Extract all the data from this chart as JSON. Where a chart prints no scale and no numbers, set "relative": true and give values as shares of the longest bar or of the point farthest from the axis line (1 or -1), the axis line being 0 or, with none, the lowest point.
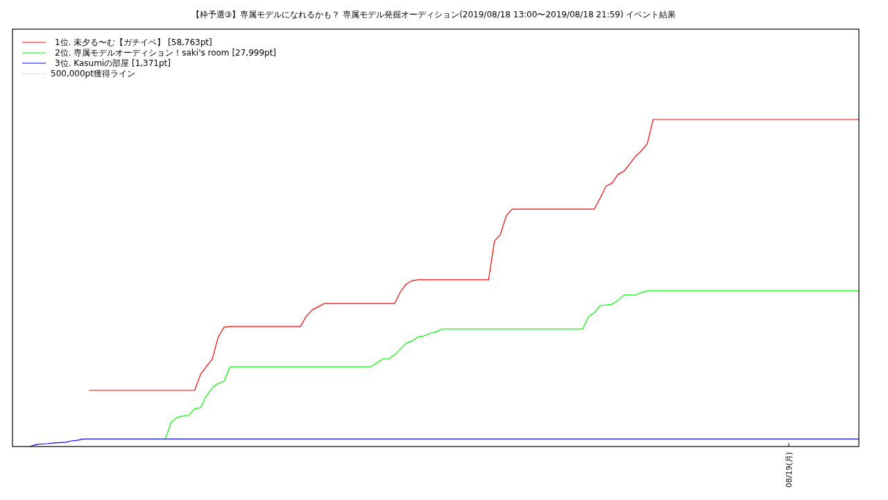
{
  "chart_data": {
    "type": "line",
    "relative": true,
    "title": "【枠予選③】専属モデルになれるかも？ 専属モデル発掘オーディション(2019/08/18 13:00〜2019/08/18 21:59)          イベント結果",
    "categories": [
      null,
      null,
      null,
      null,
      null,
      null,
      null,
      null,
      null,
      null,
      null,
      null,
      null,
      null,
      null,
      null,
      null,
      null,
      null,
      null,
      null,
      null,
      null,
      null,
      null,
      null,
      null,
      null,
      null,
      null,
      null,
      null,
      null,
      null,
      null,
      null,
      null,
      null,
      null,
      null,
      null,
      null,
      null,
      null,
      null,
      null,
      null,
      null,
      null,
      null,
      null,
      null,
      null,
      null,
      null,
      null,
      null,
      null,
      null,
      null,
      null,
      null,
      null,
      null,
      null,
      null,
      null,
      null,
      null,
      null,
      null,
      null,
      null,
      null,
      null,
      null,
      null,
      null,
      null,
      null,
      null,
      null,
      null,
      null,
      null,
      null,
      null,
      null,
      null,
      null,
      null,
      null,
      null,
      null,
      null,
      null,
      null,
      null,
      null,
      null,
      null,
      null,
      null,
      null,
      null,
      null,
      null,
      null,
      null,
      null,
      null,
      null,
      null,
      null,
      null,
      null,
      null,
      null,
      null,
      null,
      null,
      null,
      null,
      null,
      null,
      null,
      null,
      null,
      null,
      null,
      null,
      null,
      null,
      null,
      null,
      null,
      null,
      null,
      null,
      null,
      null,
      null,
      null,
      null,
      null
    ],
    "annotations": [
      "08/19(月)"
    ],
    "legend": "top left",
    "line_style": "solid",
    "marker": "none",
    "series": [
      {
        "name": "1位. 未夕る〜む【ガチイベ】 [58,763pt]",
        "color": "#ff0000",
        "values": [
          null,
          null,
          null,
          null,
          null,
          null,
          null,
          null,
          null,
          null,
          null,
          null,
          null,
          0.172,
          0.172,
          0.172,
          0.172,
          0.172,
          0.172,
          0.172,
          0.172,
          0.172,
          0.172,
          0.172,
          0.172,
          0.172,
          0.172,
          0.172,
          0.172,
          0.172,
          0.172,
          0.172,
          0.221,
          0.245,
          0.268,
          0.335,
          0.365,
          0.367,
          0.367,
          0.367,
          0.367,
          0.367,
          0.367,
          0.367,
          0.367,
          0.367,
          0.367,
          0.367,
          0.367,
          0.367,
          0.399,
          0.418,
          0.427,
          0.437,
          0.437,
          0.437,
          0.437,
          0.437,
          0.437,
          0.437,
          0.437,
          0.437,
          0.437,
          0.437,
          0.437,
          0.437,
          0.473,
          0.497,
          0.507,
          0.51,
          0.51,
          0.51,
          0.51,
          0.51,
          0.51,
          0.51,
          0.51,
          0.51,
          0.51,
          0.51,
          0.51,
          0.51,
          0.628,
          0.648,
          0.705,
          0.726,
          0.726,
          0.726,
          0.726,
          0.726,
          0.726,
          0.726,
          0.726,
          0.726,
          0.726,
          0.726,
          0.726,
          0.726,
          0.726,
          0.726,
          0.76,
          0.796,
          0.805,
          0.832,
          0.841,
          0.864,
          0.887,
          0.904,
          0.926,
          1,
          1,
          1,
          1,
          1,
          1,
          1,
          1,
          1,
          1,
          1,
          1,
          1,
          1,
          1,
          1,
          1,
          1,
          1,
          1,
          1,
          1,
          1,
          1,
          1,
          1,
          1,
          1,
          1,
          1,
          1,
          1,
          1,
          1,
          1,
          1
        ]
      },
      {
        "name": "2位. 専属モデルオーディション！saki's room [27,999pt]",
        "color": "#00ff00",
        "values": [
          null,
          null,
          null,
          null,
          null,
          null,
          null,
          null,
          null,
          null,
          null,
          null,
          null,
          null,
          null,
          null,
          null,
          null,
          null,
          null,
          null,
          null,
          null,
          null,
          null,
          null,
          0.023,
          0.074,
          0.089,
          0.093,
          0.096,
          0.115,
          0.119,
          0.155,
          0.18,
          0.193,
          0.2,
          0.244,
          0.244,
          0.244,
          0.244,
          0.244,
          0.244,
          0.244,
          0.244,
          0.244,
          0.244,
          0.244,
          0.244,
          0.244,
          0.244,
          0.244,
          0.244,
          0.244,
          0.244,
          0.244,
          0.244,
          0.244,
          0.244,
          0.244,
          0.244,
          0.244,
          0.256,
          0.268,
          0.268,
          0.28,
          0.298,
          0.316,
          0.323,
          0.335,
          0.338,
          0.346,
          0.35,
          0.359,
          0.359,
          0.359,
          0.359,
          0.359,
          0.359,
          0.359,
          0.359,
          0.359,
          0.359,
          0.359,
          0.359,
          0.359,
          0.359,
          0.359,
          0.359,
          0.359,
          0.359,
          0.359,
          0.359,
          0.359,
          0.359,
          0.359,
          0.359,
          0.359,
          0.397,
          0.41,
          0.431,
          0.433,
          0.435,
          0.446,
          0.463,
          0.463,
          0.463,
          0.471,
          0.476,
          0.476,
          0.476,
          0.476,
          0.476,
          0.476,
          0.476,
          0.476,
          0.476,
          0.476,
          0.476,
          0.476,
          0.476,
          0.476,
          0.476,
          0.476,
          0.476,
          0.476,
          0.476,
          0.476,
          0.476,
          0.476,
          0.476,
          0.476,
          0.476,
          0.476,
          0.476,
          0.476,
          0.476,
          0.476,
          0.476,
          0.476,
          0.476,
          0.476,
          0.476,
          0.476,
          0.476
        ]
      },
      {
        "name": "3位. Kasumiの部屋 [1,371pt]",
        "color": "#0000ff",
        "values": [
          null,
          null,
          null,
          0,
          0.006,
          0.008,
          0.009,
          0.011,
          0.012,
          0.013,
          0.017,
          0.019,
          0.023,
          0.023,
          0.023,
          0.023,
          0.023,
          0.023,
          0.023,
          0.023,
          0.023,
          0.023,
          0.023,
          0.023,
          0.023,
          0.023,
          0.023,
          0.023,
          0.023,
          0.023,
          0.023,
          0.023,
          0.023,
          0.023,
          0.023,
          0.023,
          0.023,
          0.023,
          0.023,
          0.023,
          0.023,
          0.023,
          0.023,
          0.023,
          0.023,
          0.023,
          0.023,
          0.023,
          0.023,
          0.023,
          0.023,
          0.023,
          0.023,
          0.023,
          0.023,
          0.023,
          0.023,
          0.023,
          0.023,
          0.023,
          0.023,
          0.023,
          0.023,
          0.023,
          0.023,
          0.023,
          0.023,
          0.023,
          0.023,
          0.023,
          0.023,
          0.023,
          0.023,
          0.023,
          0.023,
          0.023,
          0.023,
          0.023,
          0.023,
          0.023,
          0.023,
          0.023,
          0.023,
          0.023,
          0.023,
          0.023,
          0.023,
          0.023,
          0.023,
          0.023,
          0.023,
          0.023,
          0.023,
          0.023,
          0.023,
          0.023,
          0.023,
          0.023,
          0.023,
          0.023,
          0.023,
          0.023,
          0.023,
          0.023,
          0.023,
          0.023,
          0.023,
          0.023,
          0.023,
          0.023,
          0.023,
          0.023,
          0.023,
          0.023,
          0.023,
          0.023,
          0.023,
          0.023,
          0.023,
          0.023,
          0.023,
          0.023,
          0.023,
          0.023,
          0.023,
          0.023,
          0.023,
          0.023,
          0.023,
          0.023,
          0.023,
          0.023,
          0.023,
          0.023,
          0.023,
          0.023,
          0.023,
          0.023,
          0.023,
          0.023,
          0.023,
          0.023,
          0.023,
          0.023,
          0.023
        ]
      },
      {
        "name": "500,000pt獲得ライン",
        "color": "#ff8080",
        "line_style": "dotted",
        "values": [
          null,
          null,
          null,
          null,
          null,
          null,
          null,
          null,
          null,
          null,
          null,
          null,
          null,
          null,
          null,
          null,
          null,
          null,
          null,
          null,
          null,
          null,
          null,
          null,
          null,
          null,
          null,
          null,
          null,
          null,
          null,
          null,
          null,
          null,
          null,
          null,
          null,
          null,
          null,
          null,
          null,
          null,
          null,
          null,
          null,
          null,
          null,
          null,
          null,
          null,
          null,
          null,
          null,
          null,
          null,
          null,
          null,
          null,
          null,
          null,
          null,
          null,
          null,
          null,
          null,
          null,
          null,
          null,
          null,
          null,
          null,
          null,
          null,
          null,
          null,
          null,
          null,
          null,
          null,
          null,
          null,
          null,
          null,
          null,
          null,
          null,
          null,
          null,
          null,
          null,
          null,
          null,
          null,
          null,
          null,
          null,
          null,
          null,
          null,
          null,
          null,
          null,
          null,
          null,
          null,
          null,
          null,
          null,
          null,
          null,
          null,
          null,
          null,
          null,
          null,
          null,
          null,
          null,
          null,
          null,
          null,
          null,
          null,
          null,
          null,
          null,
          null,
          null,
          null,
          null,
          null,
          null,
          null,
          null,
          null,
          null,
          null,
          null,
          null,
          null,
          null,
          null,
          null,
          null,
          null
        ]
      }
    ]
  }
}
